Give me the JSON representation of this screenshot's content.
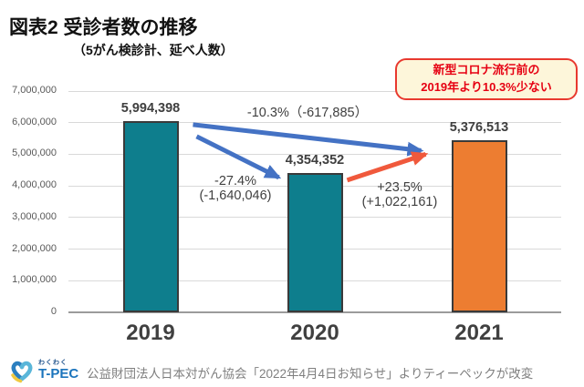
{
  "title": "図表2 受診者数の推移",
  "subtitle": "（5がん検診計、延べ人数）",
  "callout": {
    "line1": "新型コロナ流行前の",
    "line2": "2019年より10.3%少ない",
    "border_color": "#e8392f",
    "text_color": "#e60012",
    "bg_color": "#fdf6da"
  },
  "chart_data": {
    "type": "bar",
    "categories": [
      "2019",
      "2020",
      "2021"
    ],
    "values": [
      5994398,
      4354352,
      5376513
    ],
    "value_labels": [
      "5,994,398",
      "4,354,352",
      "5,376,513"
    ],
    "bar_colors": [
      "#0e7e8d",
      "#0e7e8d",
      "#ed7d31"
    ],
    "bar_border_color": "#3a3a3a",
    "ylim": [
      0,
      7000000
    ],
    "ytick_step": 1000000,
    "ytick_labels": [
      "0",
      "1,000,000",
      "2,000,000",
      "3,000,000",
      "4,000,000",
      "5,000,000",
      "6,000,000",
      "7,000,000"
    ],
    "grid": true,
    "legend": false,
    "annotations": [
      {
        "from": "2019",
        "to": "2021",
        "label": "-10.3%（-617,885）",
        "color": "#4472c4"
      },
      {
        "from": "2019",
        "to": "2020",
        "line1": "-27.4%",
        "line2": "(-1,640,046)",
        "color": "#4472c4"
      },
      {
        "from": "2020",
        "to": "2021",
        "line1": "+23.5%",
        "line2": "(+1,022,161)",
        "color": "#f0593c"
      }
    ]
  },
  "footer": {
    "source": "公益財団法人日本対がん協会「2022年4月4日お知らせ」よりティーペックが改変",
    "logo_small": "わくわく",
    "logo_main": "T-PEC"
  }
}
